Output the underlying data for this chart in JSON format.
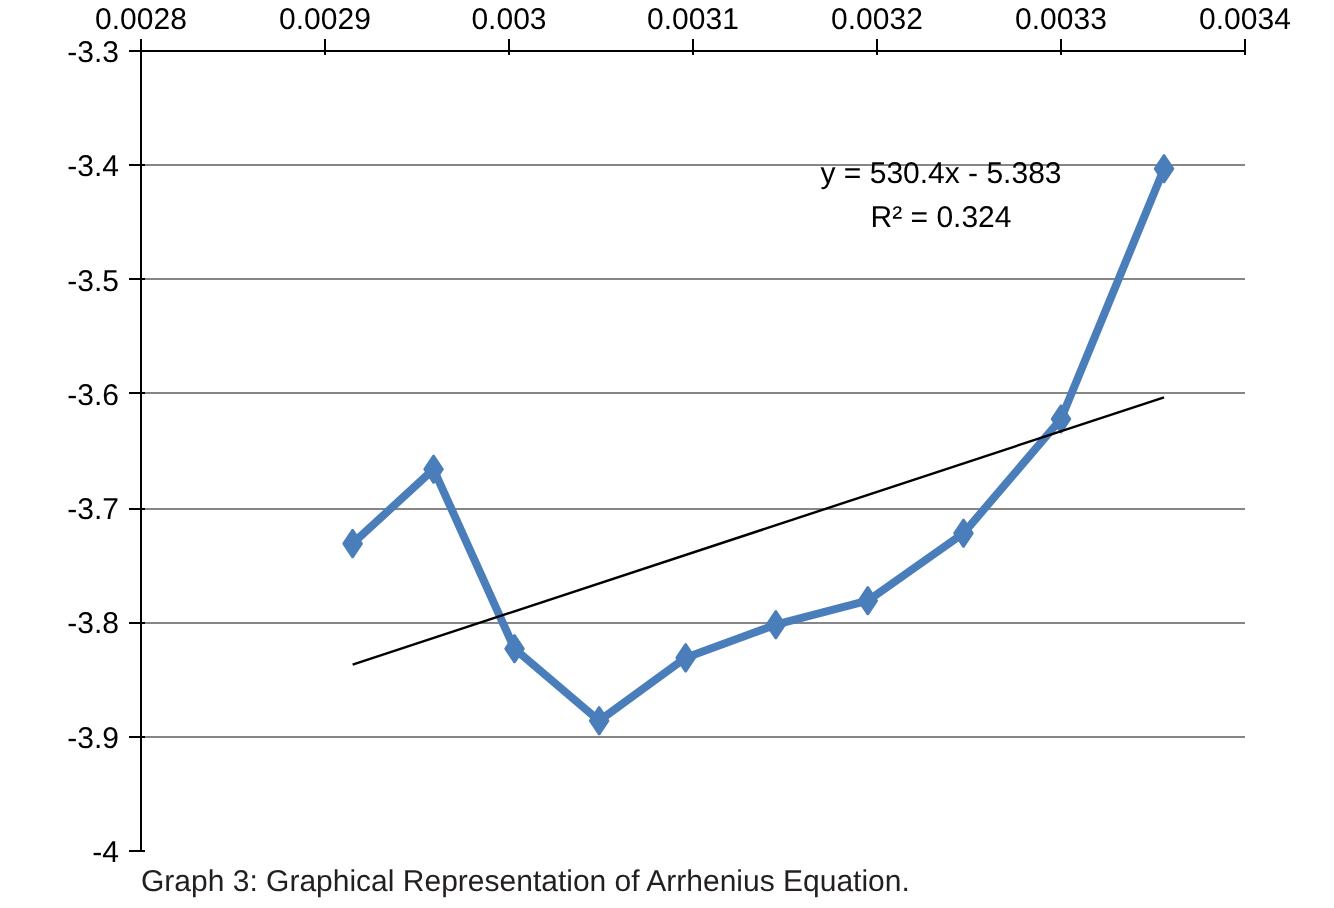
{
  "chart_data": {
    "type": "line",
    "x": [
      0.002915,
      0.002959,
      0.003003,
      0.003049,
      0.003096,
      0.003145,
      0.003195,
      0.003247,
      0.0033,
      0.003356
    ],
    "series": [
      {
        "color": "#4a7ebb",
        "values": [
          -3.731,
          -3.666,
          -3.823,
          -3.886,
          -3.831,
          -3.802,
          -3.781,
          -3.722,
          -3.622,
          -3.403
        ],
        "marker": "diamond"
      },
      {
        "type": "line",
        "color": "#000000",
        "x": [
          0.002915,
          0.003356
        ],
        "values": [
          -3.837,
          -3.603
        ],
        "marker": "none"
      }
    ],
    "xlim": [
      0.0028,
      0.0034
    ],
    "xticks": [
      0.0028,
      0.0029,
      0.003,
      0.0031,
      0.0032,
      0.0033,
      0.0034
    ],
    "ylim": [
      -4,
      -3.3
    ],
    "yticks": [
      -3.3,
      -3.4,
      -3.5,
      -3.6,
      -3.7,
      -3.8,
      -3.9,
      -4
    ],
    "grid": "y",
    "annotations": [
      "y = 530.4x - 5.383",
      "R² = 0.324",
      "Graph 3: Graphical Representation of Arrhenius Equation."
    ]
  }
}
